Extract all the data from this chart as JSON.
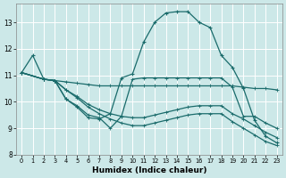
{
  "xlabel": "Humidex (Indice chaleur)",
  "background_color": "#cce8e8",
  "grid_color": "#ffffff",
  "line_color": "#1a6b6b",
  "xlim": [
    -0.5,
    23.5
  ],
  "ylim": [
    8,
    13.7
  ],
  "yticks": [
    8,
    9,
    10,
    11,
    12,
    13
  ],
  "xticks": [
    0,
    1,
    2,
    3,
    4,
    5,
    6,
    7,
    8,
    9,
    10,
    11,
    12,
    13,
    14,
    15,
    16,
    17,
    18,
    19,
    20,
    21,
    22,
    23
  ],
  "lines": [
    {
      "x": [
        0,
        1,
        2,
        3,
        4,
        5,
        6,
        7,
        8,
        9,
        10,
        11,
        12,
        13,
        14,
        15,
        16,
        17,
        18,
        19,
        20,
        21,
        22,
        23
      ],
      "y": [
        11.1,
        11.75,
        10.85,
        10.8,
        10.1,
        9.8,
        9.4,
        9.35,
        9.55,
        10.9,
        11.05,
        12.25,
        13.0,
        13.35,
        13.4,
        13.4,
        13.0,
        12.8,
        11.75,
        11.3,
        10.5,
        9.3,
        8.7,
        8.45
      ],
      "markers": true
    },
    {
      "x": [
        0,
        2,
        3,
        4,
        5,
        6,
        7,
        8,
        9,
        10,
        11,
        12,
        13,
        14,
        15,
        16,
        17,
        18,
        19,
        20,
        21,
        22,
        23
      ],
      "y": [
        11.1,
        10.85,
        10.8,
        10.75,
        10.7,
        10.65,
        10.6,
        10.6,
        10.6,
        10.6,
        10.6,
        10.6,
        10.6,
        10.6,
        10.6,
        10.6,
        10.6,
        10.6,
        10.6,
        10.55,
        10.5,
        10.5,
        10.45
      ],
      "markers": false
    },
    {
      "x": [
        0,
        2,
        3,
        4,
        5,
        6,
        7,
        8,
        9,
        10,
        11,
        12,
        13,
        14,
        15,
        16,
        17,
        18,
        19,
        20,
        21,
        22,
        23
      ],
      "y": [
        11.1,
        10.85,
        10.8,
        10.1,
        9.85,
        9.5,
        9.4,
        9.0,
        9.45,
        10.85,
        10.9,
        10.9,
        10.9,
        10.9,
        10.9,
        10.9,
        10.9,
        10.9,
        10.55,
        9.45,
        9.45,
        9.2,
        9.0
      ],
      "markers": false
    },
    {
      "x": [
        0,
        2,
        3,
        4,
        5,
        6,
        7,
        8,
        9,
        10,
        11,
        12,
        13,
        14,
        15,
        16,
        17,
        18,
        19,
        20,
        21,
        22,
        23
      ],
      "y": [
        11.1,
        10.85,
        10.8,
        10.45,
        10.2,
        9.9,
        9.7,
        9.55,
        9.45,
        9.4,
        9.4,
        9.5,
        9.6,
        9.7,
        9.8,
        9.85,
        9.85,
        9.85,
        9.55,
        9.35,
        9.1,
        8.85,
        8.65
      ],
      "markers": false
    },
    {
      "x": [
        0,
        2,
        3,
        4,
        5,
        6,
        7,
        8,
        9,
        10,
        11,
        12,
        13,
        14,
        15,
        16,
        17,
        18,
        19,
        20,
        21,
        22,
        23
      ],
      "y": [
        11.1,
        10.85,
        10.8,
        10.45,
        10.15,
        9.8,
        9.55,
        9.35,
        9.2,
        9.1,
        9.1,
        9.2,
        9.3,
        9.4,
        9.5,
        9.55,
        9.55,
        9.55,
        9.25,
        9.0,
        8.75,
        8.5,
        8.35
      ],
      "markers": false
    }
  ]
}
